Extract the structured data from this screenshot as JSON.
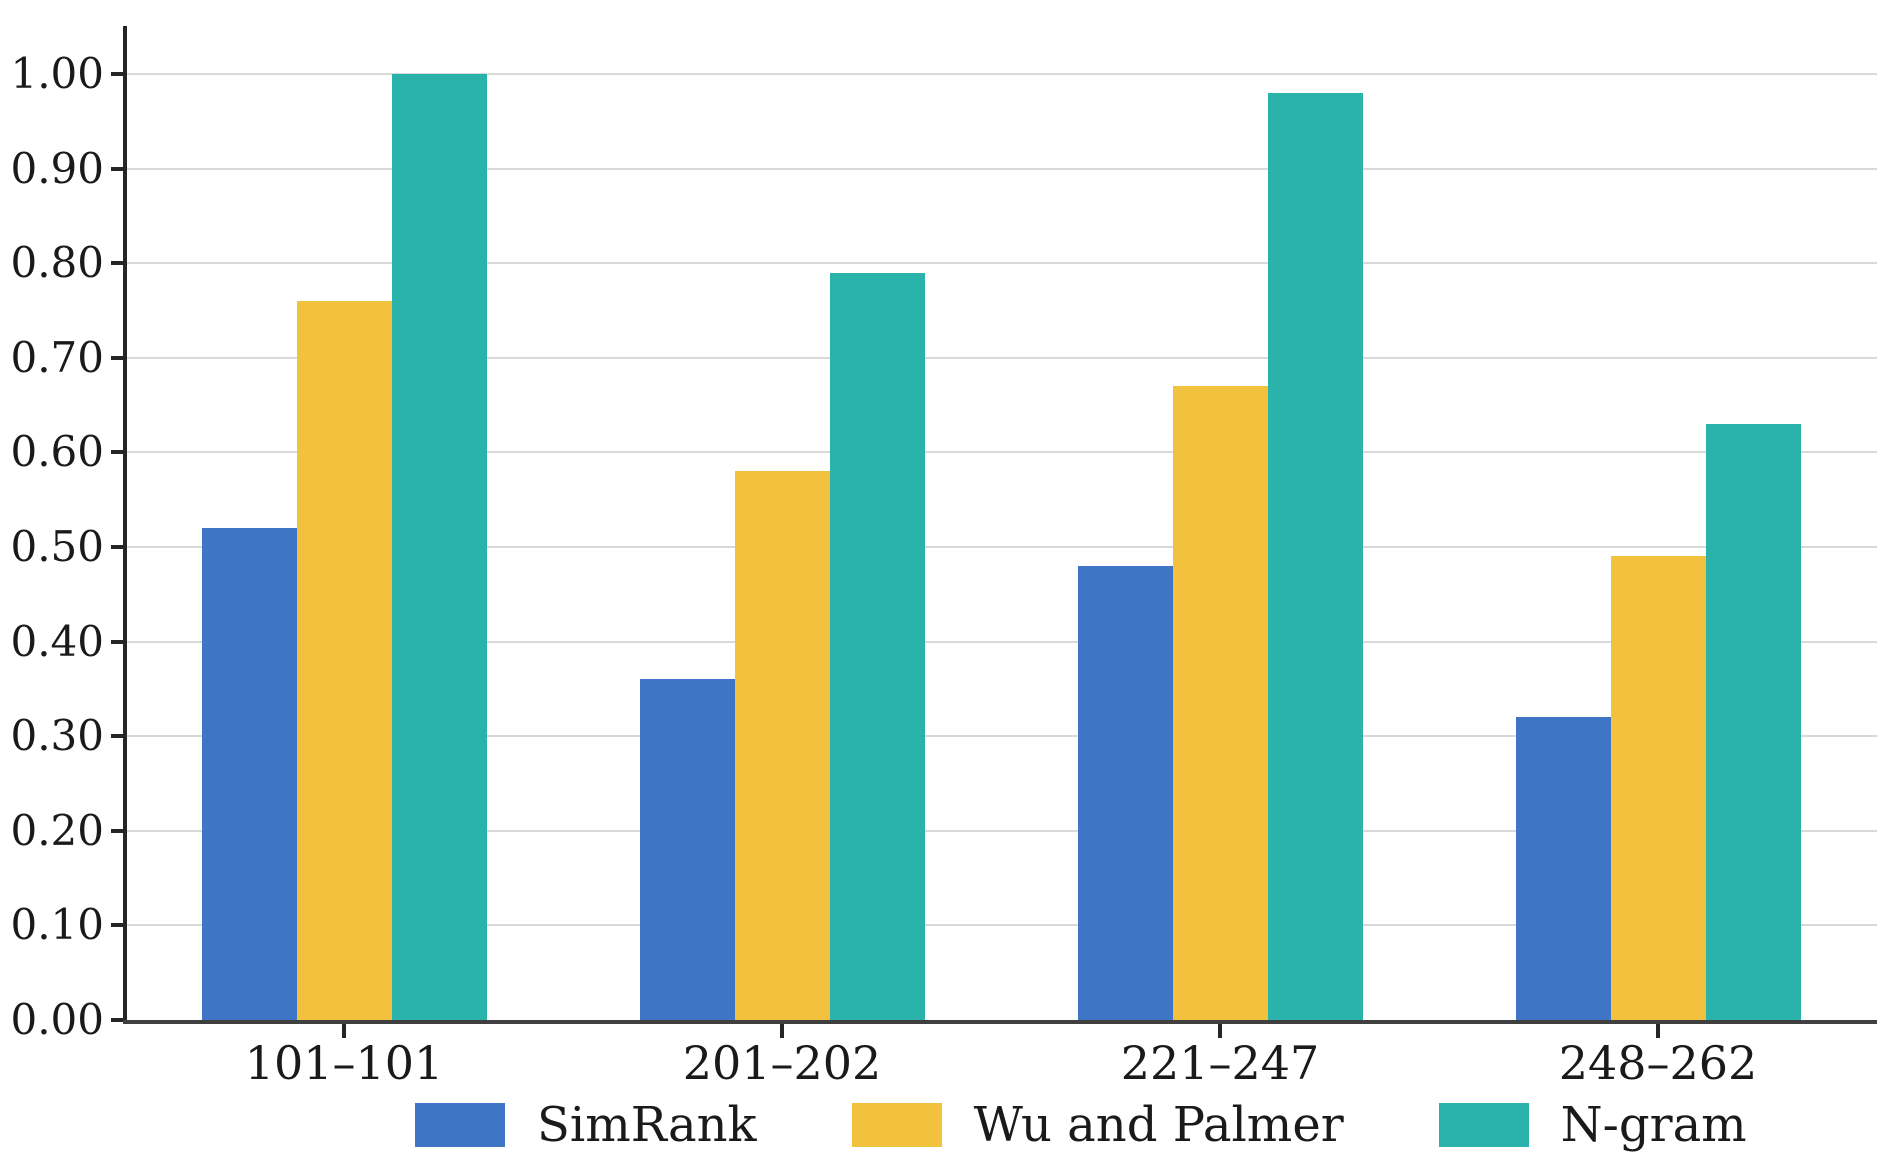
{
  "figure": {
    "background": "#ffffff"
  },
  "chart_data": {
    "type": "bar",
    "title": "",
    "xlabel": "",
    "ylabel": "",
    "categories": [
      "101–101",
      "201–202",
      "221–247",
      "248–262"
    ],
    "series": [
      {
        "name": "SimRank",
        "color": "#3E76C5",
        "values": [
          0.52,
          0.36,
          0.48,
          0.32
        ]
      },
      {
        "name": "Wu and Palmer",
        "color": "#F2C13D",
        "values": [
          0.76,
          0.58,
          0.67,
          0.49
        ]
      },
      {
        "name": "N-gram",
        "color": "#2AB3AB",
        "values": [
          1.0,
          0.79,
          0.98,
          0.63
        ]
      }
    ],
    "ylim": [
      0.0,
      1.0
    ],
    "ytick_step": 0.1,
    "ytick_labels": [
      "0.00",
      "0.10",
      "0.20",
      "0.30",
      "0.40",
      "0.50",
      "0.60",
      "0.70",
      "0.80",
      "0.90",
      "1.00"
    ],
    "grid": true,
    "legend_position": "bottom",
    "colors": {
      "gridline": "#D9D9D9",
      "y_axis": "#262626",
      "x_axis": "#3F3F3F",
      "tick": "#262626",
      "text": "#1A1A1A"
    }
  }
}
